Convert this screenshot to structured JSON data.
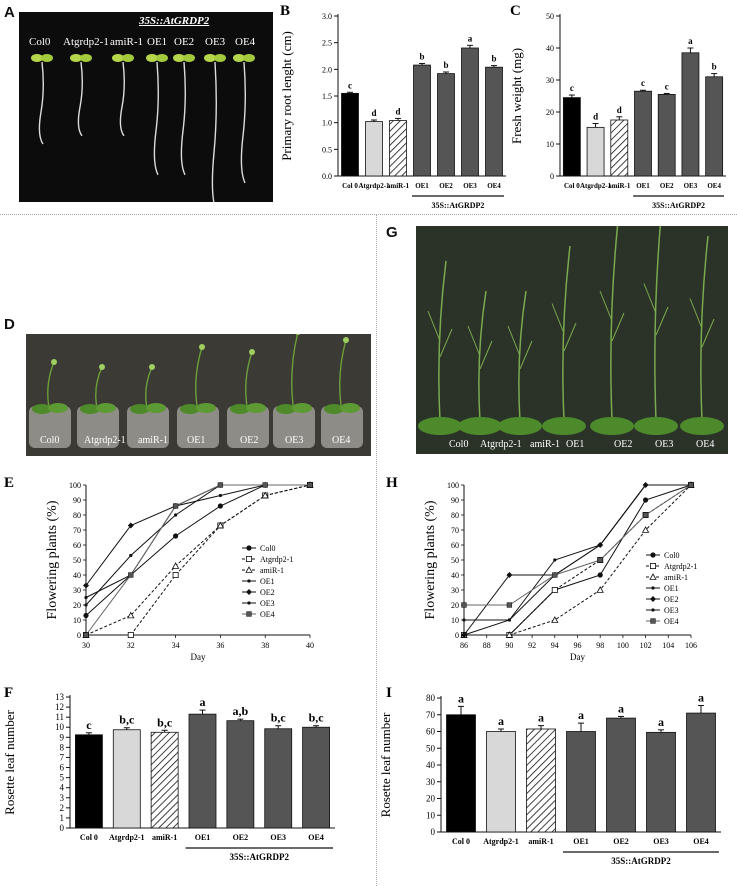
{
  "panels": {
    "A": {
      "letter": "A",
      "labels": [
        "Col0",
        "Atgrdp2-1",
        "amiR-1",
        "OE1",
        "OE2",
        "OE3",
        "OE4"
      ],
      "construct": "35S::AtGRDP2"
    },
    "D": {
      "letter": "D",
      "labels": [
        "Col0",
        "Atgrdp2-1",
        "amiR-1",
        "OE1",
        "OE2",
        "OE3",
        "OE4"
      ]
    },
    "G": {
      "letter": "G",
      "labels": [
        "Col0",
        "Atgrdp2-1",
        "amiR-1",
        "OE1",
        "OE2",
        "OE3",
        "OE4"
      ]
    }
  },
  "chart_data": [
    {
      "id": "B",
      "letter": "B",
      "type": "bar",
      "ylabel": "Primary root lenght (cm)",
      "categories": [
        "Col 0",
        "Atgrdp2-1",
        "amiR-1",
        "OE1",
        "OE2",
        "OE3",
        "OE4"
      ],
      "values": [
        1.55,
        1.02,
        1.04,
        2.08,
        1.92,
        2.4,
        2.04
      ],
      "errors": [
        0.02,
        0.03,
        0.04,
        0.03,
        0.03,
        0.05,
        0.03
      ],
      "letters": [
        "c",
        "d",
        "d",
        "b",
        "b",
        "a",
        "b"
      ],
      "ylim": [
        0,
        3
      ],
      "yticks": [
        0.0,
        0.5,
        1.0,
        1.5,
        2.0,
        2.5,
        3.0
      ],
      "tick_decimals": 1,
      "group_label": "35S::AtGRDP2",
      "bar_fills": [
        "black",
        "lightgray",
        "hatch",
        "darkgray",
        "darkgray",
        "darkgray",
        "darkgray"
      ]
    },
    {
      "id": "C",
      "letter": "C",
      "type": "bar",
      "ylabel": "Fresh weight (mg)",
      "categories": [
        "Col 0",
        "Atgrdp2-1",
        "amiR-1",
        "OE1",
        "OE2",
        "OE3",
        "OE4"
      ],
      "values": [
        24.5,
        15.2,
        17.5,
        26.5,
        25.5,
        38.5,
        31.0
      ],
      "errors": [
        0.8,
        1.2,
        1.0,
        0.3,
        0.3,
        1.5,
        1.0
      ],
      "letters": [
        "c",
        "d",
        "d",
        "c",
        "c",
        "a",
        "b"
      ],
      "ylim": [
        0,
        50
      ],
      "yticks": [
        0,
        10,
        20,
        30,
        40,
        50
      ],
      "tick_decimals": 0,
      "group_label": "35S::AtGRDP2",
      "bar_fills": [
        "black",
        "lightgray",
        "hatch",
        "darkgray",
        "darkgray",
        "darkgray",
        "darkgray"
      ]
    },
    {
      "id": "E",
      "letter": "E",
      "type": "line",
      "xlabel": "Day",
      "ylabel": "Flowering plants (%)",
      "xlim": [
        30,
        40
      ],
      "xticks": [
        30,
        32,
        34,
        36,
        38,
        40
      ],
      "ylim": [
        0,
        100
      ],
      "yticks": [
        0,
        10,
        20,
        30,
        40,
        50,
        60,
        70,
        80,
        90,
        100
      ],
      "series": [
        {
          "name": "Col0",
          "x": [
            30,
            32,
            34,
            36,
            38,
            40
          ],
          "y": [
            13,
            40,
            66,
            86,
            100,
            100
          ],
          "marker": "filled-circle",
          "dash": false
        },
        {
          "name": "Atgrdp2-1",
          "x": [
            30,
            32,
            34,
            36,
            38,
            40
          ],
          "y": [
            0,
            0,
            40,
            73,
            93,
            100
          ],
          "marker": "open-square",
          "dash": true
        },
        {
          "name": "amiR-1",
          "x": [
            30,
            32,
            34,
            36,
            38,
            40
          ],
          "y": [
            0,
            13,
            46,
            73,
            93,
            100
          ],
          "marker": "open-triangle",
          "dash": true
        },
        {
          "name": "OE1",
          "x": [
            30,
            32,
            34,
            36,
            38,
            40
          ],
          "y": [
            20,
            53,
            80,
            100,
            100,
            100
          ],
          "marker": "small-dot",
          "dash": false
        },
        {
          "name": "OE2",
          "x": [
            30,
            32,
            34,
            36,
            38,
            40
          ],
          "y": [
            33,
            73,
            86,
            100,
            100,
            100
          ],
          "marker": "diamond",
          "dash": false
        },
        {
          "name": "OE3",
          "x": [
            30,
            32,
            34,
            36,
            38,
            40
          ],
          "y": [
            25,
            40,
            86,
            93,
            100,
            100
          ],
          "marker": "small-dot",
          "dash": false
        },
        {
          "name": "OE4",
          "x": [
            30,
            32,
            34,
            36,
            38,
            40
          ],
          "y": [
            0,
            40,
            86,
            100,
            100,
            100
          ],
          "marker": "filled-square",
          "dash": false
        }
      ]
    },
    {
      "id": "H",
      "letter": "H",
      "type": "line",
      "xlabel": "Day",
      "ylabel": "Flowering plants (%)",
      "xlim": [
        86,
        106
      ],
      "xticks": [
        86,
        88,
        90,
        92,
        94,
        96,
        98,
        100,
        102,
        104,
        106
      ],
      "ylim": [
        0,
        100
      ],
      "yticks": [
        0,
        10,
        20,
        30,
        40,
        50,
        60,
        70,
        80,
        90,
        100
      ],
      "series": [
        {
          "name": "Col0",
          "x": [
            86,
            90,
            94,
            98,
            102,
            106
          ],
          "y": [
            0,
            0,
            30,
            40,
            90,
            100
          ],
          "marker": "filled-circle",
          "dash": false
        },
        {
          "name": "Atgrdp2-1",
          "x": [
            86,
            90,
            94,
            98,
            102,
            106
          ],
          "y": [
            0,
            0,
            30,
            50,
            80,
            100
          ],
          "marker": "open-square",
          "dash": true
        },
        {
          "name": "amiR-1",
          "x": [
            86,
            90,
            94,
            98,
            102,
            106
          ],
          "y": [
            0,
            0,
            10,
            30,
            70,
            100
          ],
          "marker": "open-triangle",
          "dash": true
        },
        {
          "name": "OE1",
          "x": [
            86,
            90,
            94,
            98,
            102,
            106
          ],
          "y": [
            10,
            10,
            40,
            60,
            100,
            100
          ],
          "marker": "small-dot",
          "dash": false
        },
        {
          "name": "OE2",
          "x": [
            86,
            90,
            94,
            98,
            102,
            106
          ],
          "y": [
            0,
            40,
            40,
            60,
            100,
            100
          ],
          "marker": "diamond",
          "dash": false
        },
        {
          "name": "OE3",
          "x": [
            86,
            90,
            94,
            98,
            102,
            106
          ],
          "y": [
            0,
            10,
            50,
            60,
            100,
            100
          ],
          "marker": "small-dot",
          "dash": false
        },
        {
          "name": "OE4",
          "x": [
            86,
            90,
            94,
            98,
            102,
            106
          ],
          "y": [
            20,
            20,
            40,
            50,
            80,
            100
          ],
          "marker": "filled-square",
          "dash": false
        }
      ]
    },
    {
      "id": "F",
      "letter": "F",
      "type": "bar",
      "ylabel": "Rosette leaf number",
      "categories": [
        "Col 0",
        "Atgrdp2-1",
        "amiR-1",
        "OE1",
        "OE2",
        "OE3",
        "OE4"
      ],
      "values": [
        9.25,
        9.75,
        9.5,
        11.3,
        10.65,
        9.85,
        10.0
      ],
      "errors": [
        0.2,
        0.2,
        0.2,
        0.4,
        0.15,
        0.3,
        0.15
      ],
      "letters": [
        "c",
        "b,c",
        "b,c",
        "a",
        "a,b",
        "b,c",
        "b,c"
      ],
      "ylim": [
        0,
        13
      ],
      "yticks": [
        0,
        1,
        2,
        3,
        4,
        5,
        6,
        7,
        8,
        9,
        10,
        11,
        12,
        13
      ],
      "tick_decimals": 0,
      "group_label": "35S::AtGRDP2",
      "bar_fills": [
        "black",
        "lightgray",
        "hatch",
        "darkgray",
        "darkgray",
        "darkgray",
        "darkgray"
      ]
    },
    {
      "id": "I",
      "letter": "I",
      "type": "bar",
      "ylabel": "Rosette leaf number",
      "categories": [
        "Col 0",
        "Atgrdp2-1",
        "amiR-1",
        "OE1",
        "OE2",
        "OE3",
        "OE4"
      ],
      "values": [
        70,
        60,
        61.5,
        60,
        68,
        59.5,
        71
      ],
      "errors": [
        5,
        1.5,
        2,
        5,
        1,
        1.5,
        4.5
      ],
      "letters": [
        "a",
        "a",
        "a",
        "a",
        "a",
        "a",
        "a"
      ],
      "ylim": [
        0,
        80
      ],
      "yticks": [
        0,
        10,
        20,
        30,
        40,
        50,
        60,
        70,
        80
      ],
      "tick_decimals": 0,
      "group_label": "35S::AtGRDP2",
      "bar_fills": [
        "black",
        "lightgray",
        "hatch",
        "darkgray",
        "darkgray",
        "darkgray",
        "darkgray"
      ]
    }
  ]
}
